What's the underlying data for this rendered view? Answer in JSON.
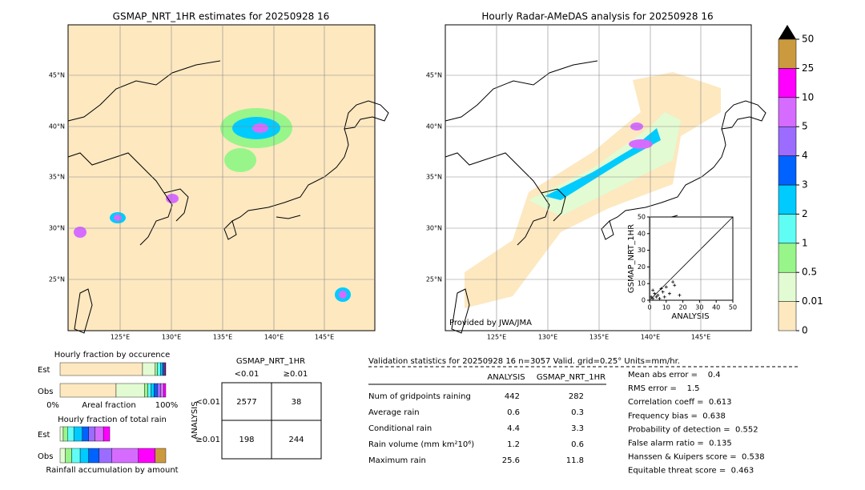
{
  "left_map": {
    "title": "GSMAP_NRT_1HR estimates for 20250928 16",
    "lat_labels": [
      "45°N",
      "40°N",
      "35°N",
      "30°N",
      "25°N"
    ],
    "lon_labels": [
      "125°E",
      "130°E",
      "135°E",
      "140°E",
      "145°E"
    ]
  },
  "right_map": {
    "title": "Hourly Radar-AMeDAS analysis for 20250928 16",
    "lat_labels": [
      "45°N",
      "40°N",
      "35°N",
      "30°N",
      "25°N"
    ],
    "lon_labels": [
      "125°E",
      "130°E",
      "135°E",
      "140°E",
      "145°E"
    ],
    "credit": "Provided by JWA/JMA"
  },
  "colorbar": {
    "levels": [
      0,
      0.01,
      0.5,
      1,
      2,
      3,
      4,
      5,
      10,
      25,
      50
    ],
    "colors": [
      "#fde8c0",
      "#e2fbd2",
      "#98f58a",
      "#60fdf5",
      "#00cbff",
      "#0062ff",
      "#9b6cff",
      "#d66cff",
      "#ff00ff",
      "#cc9a3e"
    ]
  },
  "scatter": {
    "type": "scatter",
    "xlabel": "ANALYSIS",
    "ylabel": "GSMAP_NRT_1HR",
    "xlim": [
      0,
      50
    ],
    "ylim": [
      0,
      50
    ],
    "xticks": [
      0,
      10,
      20,
      30,
      40,
      50
    ],
    "yticks": [
      0,
      10,
      20,
      30,
      40,
      50
    ],
    "x": [
      1,
      2,
      3,
      5,
      8,
      10,
      12,
      15,
      18,
      2,
      6,
      4,
      7,
      9,
      14
    ],
    "y": [
      2,
      1,
      4,
      3,
      5,
      8,
      4,
      9,
      3,
      6,
      1,
      2,
      7,
      2,
      11
    ]
  },
  "occurrence": {
    "title": "Hourly fraction by occurence",
    "rows": [
      "Est",
      "Obs"
    ],
    "axis_left": "0%",
    "axis_label": "Areal fraction",
    "axis_right": "100%",
    "est": [
      0.78,
      0.12,
      0.02,
      0.03,
      0.02,
      0.01,
      0.01,
      0.005,
      0.005,
      0
    ],
    "obs": [
      0.53,
      0.27,
      0.03,
      0.03,
      0.03,
      0.03,
      0.03,
      0.03,
      0.02,
      0
    ]
  },
  "total_rain": {
    "title": "Hourly fraction of total rain",
    "rows": [
      "Est",
      "Obs"
    ],
    "axis_label": "Rainfall accumulation by amount",
    "est": [
      0,
      0.03,
      0.04,
      0.06,
      0.08,
      0.06,
      0.06,
      0.08,
      0.06,
      0
    ],
    "obs": [
      0,
      0.05,
      0.06,
      0.08,
      0.08,
      0.1,
      0.12,
      0.25,
      0.16,
      0.1
    ]
  },
  "contingency": {
    "title": "GSMAP_NRT_1HR",
    "columns": [
      "<0.01",
      "≥0.01"
    ],
    "row_axis": "ANALYSIS",
    "rows": [
      "<0.01",
      "≥0.01"
    ],
    "cells": [
      [
        2577,
        38
      ],
      [
        198,
        244
      ]
    ]
  },
  "validation": {
    "header": "Validation statistics for 20250928 16  n=3057 Valid. grid=0.25° Units=mm/hr.",
    "columns": [
      "ANALYSIS",
      "GSMAP_NRT_1HR"
    ],
    "rows": [
      [
        "Num of gridpoints raining",
        "442",
        "282"
      ],
      [
        "Average rain",
        "0.6",
        "0.3"
      ],
      [
        "Conditional rain",
        "4.4",
        "3.3"
      ],
      [
        "Rain volume (mm km²10⁶)",
        "1.2",
        "0.6"
      ],
      [
        "Maximum rain",
        "25.6",
        "11.8"
      ]
    ],
    "scores": [
      "Mean abs error =    0.4",
      "RMS error =    1.5",
      "Correlation coeff =  0.613",
      "Frequency bias =  0.638",
      "Probability of detection =  0.552",
      "False alarm ratio =  0.135",
      "Hanssen & Kuipers score =  0.538",
      "Equitable threat score =  0.463"
    ]
  }
}
